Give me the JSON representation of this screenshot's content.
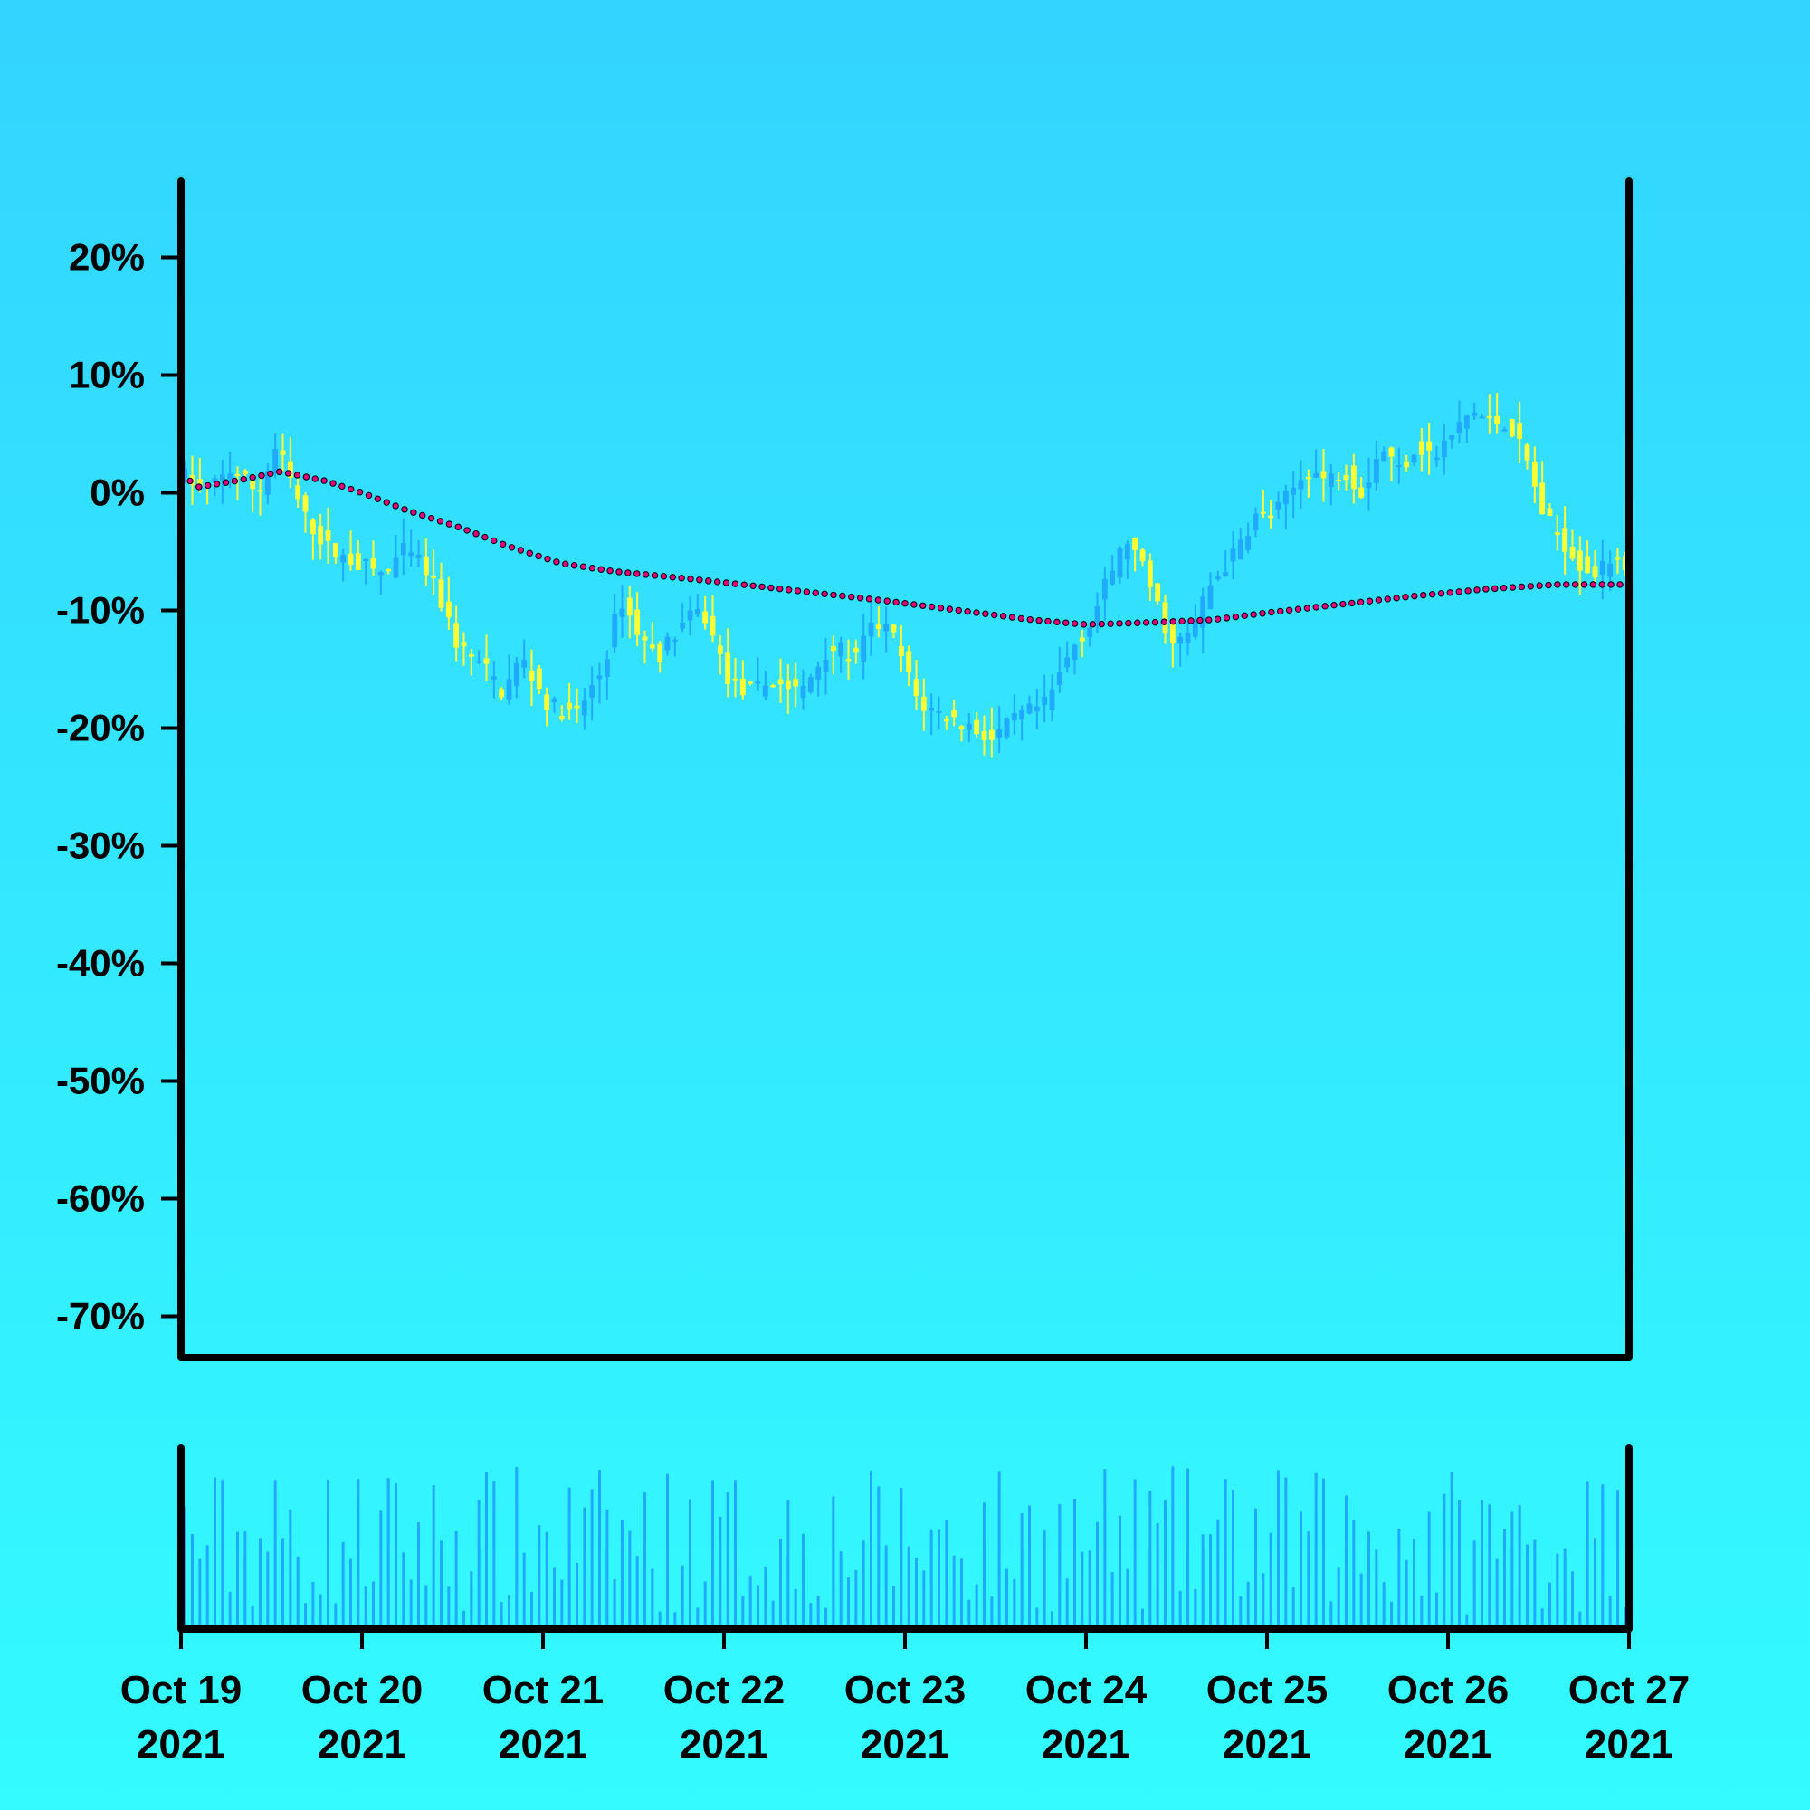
{
  "chart_data": {
    "type": "candlestick",
    "y_axis": {
      "ticks": [
        "20%",
        "10%",
        "0%",
        "-10%",
        "-20%",
        "-30%",
        "-40%",
        "-50%",
        "-60%",
        "-70%"
      ],
      "tick_values": [
        20,
        10,
        0,
        -10,
        -20,
        -30,
        -40,
        -50,
        -60,
        -70
      ],
      "range": [
        -73.5,
        26.5
      ],
      "unit": "%"
    },
    "x_axis": {
      "tick_labels": [
        {
          "line1": "Oct 19",
          "line2": "2021"
        },
        {
          "line1": "Oct 20",
          "line2": "2021"
        },
        {
          "line1": "Oct 21",
          "line2": "2021"
        },
        {
          "line1": "Oct 22",
          "line2": "2021"
        },
        {
          "line1": "Oct 23",
          "line2": "2021"
        },
        {
          "line1": "Oct 24",
          "line2": "2021"
        },
        {
          "line1": "Oct 25",
          "line2": "2021"
        },
        {
          "line1": "Oct 26",
          "line2": "2021"
        },
        {
          "line1": "Oct 27",
          "line2": "2021"
        }
      ],
      "start": "2021-10-19",
      "end": "2021-10-27",
      "range_days": [
        0,
        8
      ]
    },
    "price_path": [
      [
        0.0,
        2
      ],
      [
        0.15,
        0
      ],
      [
        0.3,
        2
      ],
      [
        0.45,
        0
      ],
      [
        0.55,
        4
      ],
      [
        0.7,
        -2
      ],
      [
        0.85,
        -5
      ],
      [
        1.0,
        -6
      ],
      [
        1.15,
        -7
      ],
      [
        1.25,
        -5
      ],
      [
        1.35,
        -6
      ],
      [
        1.45,
        -9
      ],
      [
        1.55,
        -13
      ],
      [
        1.7,
        -15
      ],
      [
        1.8,
        -17
      ],
      [
        1.9,
        -14
      ],
      [
        2.05,
        -18
      ],
      [
        2.2,
        -19
      ],
      [
        2.35,
        -15
      ],
      [
        2.45,
        -9
      ],
      [
        2.55,
        -12
      ],
      [
        2.65,
        -14
      ],
      [
        2.8,
        -11
      ],
      [
        2.9,
        -10
      ],
      [
        3.05,
        -16
      ],
      [
        3.15,
        -17
      ],
      [
        3.3,
        -16
      ],
      [
        3.45,
        -17
      ],
      [
        3.6,
        -13
      ],
      [
        3.75,
        -14
      ],
      [
        3.85,
        -11
      ],
      [
        3.95,
        -12
      ],
      [
        4.1,
        -18
      ],
      [
        4.25,
        -19
      ],
      [
        4.4,
        -20
      ],
      [
        4.5,
        -21
      ],
      [
        4.65,
        -19
      ],
      [
        4.8,
        -18
      ],
      [
        4.95,
        -13
      ],
      [
        5.05,
        -11
      ],
      [
        5.15,
        -7
      ],
      [
        5.25,
        -4
      ],
      [
        5.35,
        -7
      ],
      [
        5.5,
        -13
      ],
      [
        5.6,
        -12
      ],
      [
        5.7,
        -8
      ],
      [
        5.85,
        -5
      ],
      [
        5.95,
        -2
      ],
      [
        6.05,
        -2
      ],
      [
        6.15,
        0
      ],
      [
        6.25,
        2
      ],
      [
        6.35,
        1
      ],
      [
        6.45,
        2
      ],
      [
        6.55,
        0
      ],
      [
        6.65,
        4
      ],
      [
        6.75,
        2
      ],
      [
        6.85,
        4
      ],
      [
        6.95,
        3
      ],
      [
        7.05,
        5
      ],
      [
        7.15,
        7
      ],
      [
        7.25,
        6
      ],
      [
        7.35,
        6
      ],
      [
        7.45,
        3
      ],
      [
        7.55,
        -2
      ],
      [
        7.65,
        -4
      ],
      [
        7.75,
        -6
      ],
      [
        7.85,
        -7
      ],
      [
        7.95,
        -5
      ],
      [
        8.0,
        -6
      ]
    ],
    "moving_average": [
      [
        0.0,
        1.5
      ],
      [
        0.1,
        0.5
      ],
      [
        0.3,
        1.0
      ],
      [
        0.55,
        1.8
      ],
      [
        0.8,
        1.0
      ],
      [
        1.0,
        0
      ],
      [
        1.25,
        -1.5
      ],
      [
        1.55,
        -3.0
      ],
      [
        1.8,
        -4.5
      ],
      [
        2.1,
        -6.0
      ],
      [
        2.4,
        -6.7
      ],
      [
        2.8,
        -7.3
      ],
      [
        3.1,
        -7.8
      ],
      [
        3.5,
        -8.5
      ],
      [
        3.9,
        -9.2
      ],
      [
        4.3,
        -10.0
      ],
      [
        4.7,
        -10.8
      ],
      [
        5.0,
        -11.2
      ],
      [
        5.4,
        -11.0
      ],
      [
        5.7,
        -10.8
      ],
      [
        6.0,
        -10.2
      ],
      [
        6.4,
        -9.5
      ],
      [
        6.8,
        -8.8
      ],
      [
        7.2,
        -8.2
      ],
      [
        7.6,
        -7.8
      ],
      [
        8.0,
        -7.8
      ]
    ],
    "candles_per_day": 24,
    "colors": {
      "background_top": "#33d4ff",
      "background_bottom": "#33fbff",
      "up_candle": "#20aaff",
      "down_candle": "#ffff33",
      "moving_average": "#e0007a",
      "volume_bar": "#20aaff",
      "axis": "#000000"
    },
    "volume": {
      "relative_scale": true
    },
    "grid": false,
    "legend": "none"
  }
}
